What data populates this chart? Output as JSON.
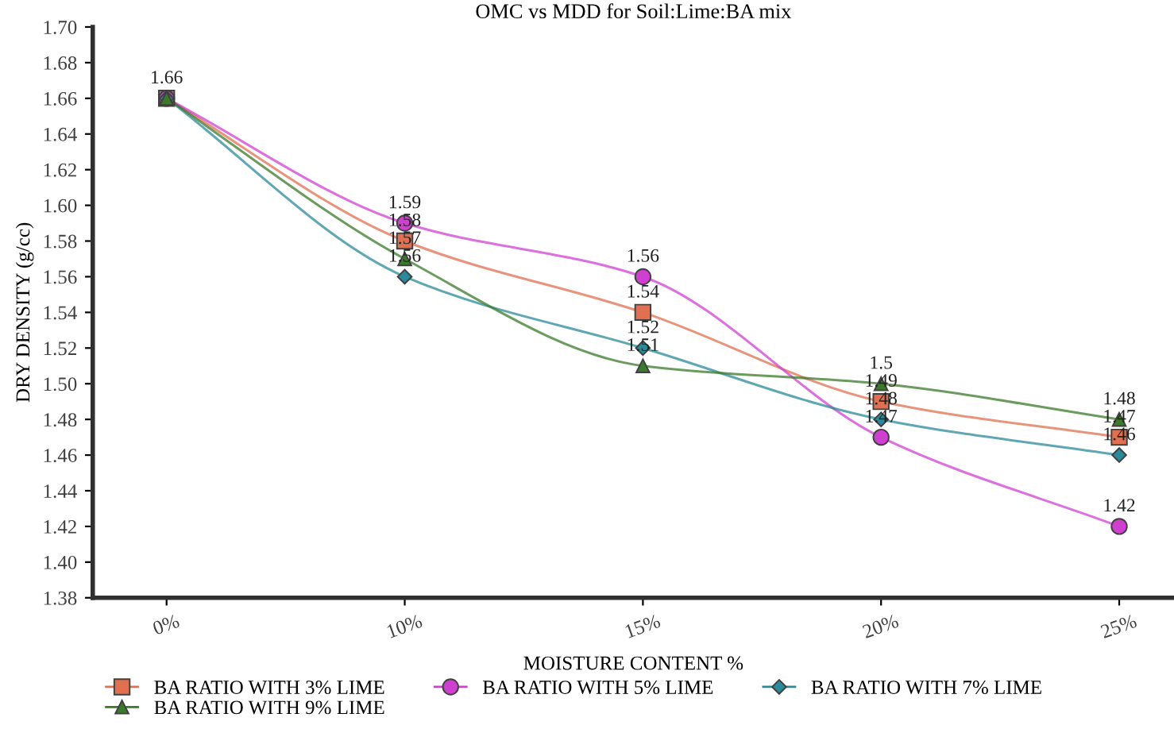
{
  "chart_data": {
    "type": "line",
    "title": "OMC vs MDD for Soil:Lime:BA mix",
    "xlabel": "MOISTURE CONTENT %",
    "ylabel": "DRY DENSITY (g/cc)",
    "categories": [
      "0%",
      "10%",
      "15%",
      "20%",
      "25%"
    ],
    "ylim": [
      1.38,
      1.7
    ],
    "yticks": [
      {
        "value": 1.38,
        "label": "1.38"
      },
      {
        "value": 1.4,
        "label": "1.40"
      },
      {
        "value": 1.42,
        "label": "1.42"
      },
      {
        "value": 1.44,
        "label": "1.44"
      },
      {
        "value": 1.46,
        "label": "1.46"
      },
      {
        "value": 1.48,
        "label": "1.48"
      },
      {
        "value": 1.5,
        "label": "1.50"
      },
      {
        "value": 1.52,
        "label": "1.52"
      },
      {
        "value": 1.54,
        "label": "1.54"
      },
      {
        "value": 1.56,
        "label": "1.56"
      },
      {
        "value": 1.58,
        "label": "1.58"
      },
      {
        "value": 1.6,
        "label": "1.60"
      },
      {
        "value": 1.62,
        "label": "1.62"
      },
      {
        "value": 1.64,
        "label": "1.64"
      },
      {
        "value": 1.66,
        "label": "1.66"
      },
      {
        "value": 1.68,
        "label": "1.68"
      },
      {
        "value": 1.7,
        "label": "1.70"
      }
    ],
    "series": [
      {
        "name": "BA RATIO WITH 3% LIME",
        "color": "#e07050",
        "marker": "square",
        "values": [
          1.66,
          1.58,
          1.54,
          1.49,
          1.47
        ],
        "value_labels": [
          "1.66",
          "1.58",
          "1.54",
          "1.49",
          "1.47"
        ]
      },
      {
        "name": "BA RATIO WITH 5% LIME",
        "color": "#d040d0",
        "marker": "circle",
        "values": [
          1.66,
          1.59,
          1.56,
          1.47,
          1.42
        ],
        "value_labels": [
          null,
          "1.59",
          "1.56",
          "1.47",
          "1.42"
        ]
      },
      {
        "name": "BA RATIO WITH 7% LIME",
        "color": "#2a8a9a",
        "marker": "diamond",
        "values": [
          1.66,
          1.56,
          1.52,
          1.48,
          1.46
        ],
        "value_labels": [
          null,
          "1.56",
          "1.52",
          "1.48",
          "1.46"
        ]
      },
      {
        "name": "BA RATIO WITH 9% LIME",
        "color": "#3a7a2a",
        "marker": "triangle",
        "values": [
          1.66,
          1.57,
          1.51,
          1.5,
          1.48
        ],
        "value_labels": [
          null,
          "1.57",
          "1.51",
          "1.5",
          "1.48"
        ]
      }
    ],
    "grid": false,
    "legend": "bottom",
    "line_style": "solid"
  }
}
